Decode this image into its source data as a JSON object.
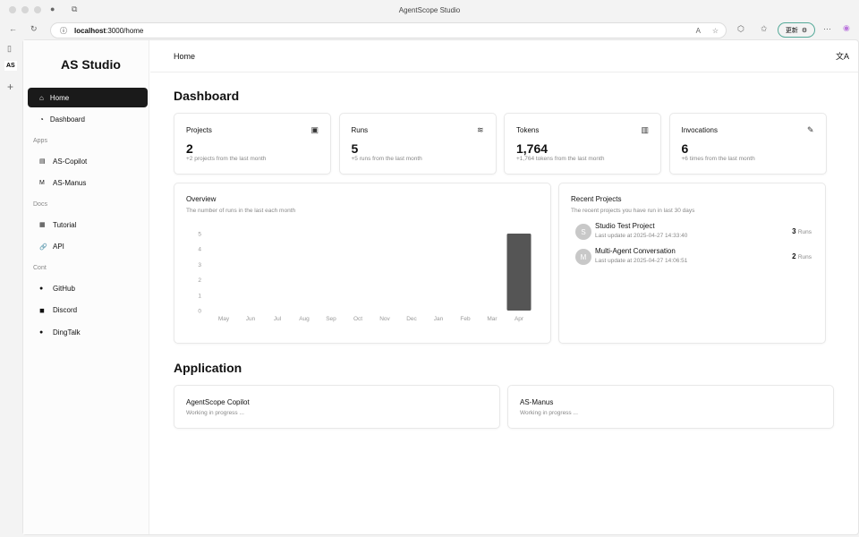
{
  "browser": {
    "title": "AgentScope Studio",
    "url_host": "localhost",
    "url_path": ":3000/home",
    "update_label": "更新"
  },
  "sidebar": {
    "logo": "AS Studio",
    "items": [
      {
        "label": "Home",
        "icon": "home-icon",
        "active": true
      },
      {
        "label": "Dashboard",
        "icon": "gauge-icon"
      }
    ],
    "sections": [
      {
        "title": "Apps",
        "items": [
          {
            "label": "AS-Copilot",
            "icon": "copilot-icon"
          },
          {
            "label": "AS-Manus",
            "icon": "manus-icon"
          }
        ]
      },
      {
        "title": "Docs",
        "items": [
          {
            "label": "Tutorial",
            "icon": "book-icon"
          },
          {
            "label": "API",
            "icon": "link-icon"
          }
        ]
      },
      {
        "title": "Cont",
        "items": [
          {
            "label": "GitHub",
            "icon": "github-icon"
          },
          {
            "label": "Discord",
            "icon": "discord-icon"
          },
          {
            "label": "DingTalk",
            "icon": "dingtalk-icon"
          }
        ]
      }
    ]
  },
  "header": {
    "title": "Home"
  },
  "dashboard": {
    "title": "Dashboard",
    "stats": [
      {
        "title": "Projects",
        "value": "2",
        "sub": "+2 projects from the last month",
        "icon": "archive-icon"
      },
      {
        "title": "Runs",
        "value": "5",
        "sub": "+5 runs from the last month",
        "icon": "layers-icon"
      },
      {
        "title": "Tokens",
        "value": "1,764",
        "sub": "+1,764 tokens from the last month",
        "icon": "bar-chart-icon"
      },
      {
        "title": "Invocations",
        "value": "6",
        "sub": "+6 times from the last month",
        "icon": "pen-icon"
      }
    ]
  },
  "overview": {
    "title": "Overview",
    "subtitle": "The number of runs in the last each month"
  },
  "chart_data": {
    "type": "bar",
    "categories": [
      "May",
      "Jun",
      "Jul",
      "Aug",
      "Sep",
      "Oct",
      "Nov",
      "Dec",
      "Jan",
      "Feb",
      "Mar",
      "Apr"
    ],
    "values": [
      0,
      0,
      0,
      0,
      0,
      0,
      0,
      0,
      0,
      0,
      0,
      5
    ],
    "ylim": [
      0,
      5
    ],
    "yticks": [
      "0",
      "1",
      "2",
      "3",
      "4",
      "5"
    ],
    "bar_color": "#555555",
    "grid": false
  },
  "recent": {
    "title": "Recent Projects",
    "subtitle": "The recent projects you have run in last 30 days",
    "projects": [
      {
        "initial": "S",
        "name": "Studio Test Project",
        "updated": "Last update at 2025-04-27 14:33:40",
        "runs": "3",
        "runs_label": "Runs"
      },
      {
        "initial": "M",
        "name": "Multi-Agent Conversation",
        "updated": "Last update at 2025-04-27 14:06:51",
        "runs": "2",
        "runs_label": "Runs"
      }
    ]
  },
  "application": {
    "title": "Application",
    "items": [
      {
        "title": "AgentScope Copilot",
        "sub": "Working in progress ..."
      },
      {
        "title": "AS-Manus",
        "sub": "Working in progress ..."
      }
    ]
  }
}
